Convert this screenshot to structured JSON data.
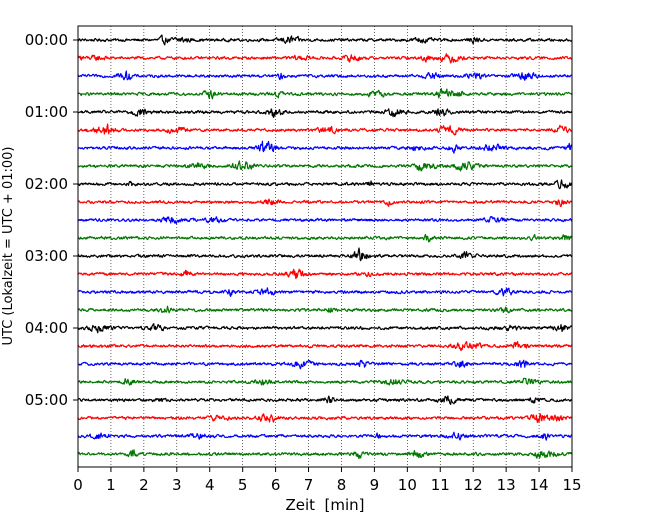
{
  "chart_data": {
    "type": "line",
    "xlabel": "Zeit  [min]",
    "ylabel": "UTC (Lokalzeit = UTC + 01:00)",
    "xlim": [
      0,
      15
    ],
    "x_ticks": [
      "0",
      "1",
      "2",
      "3",
      "4",
      "5",
      "6",
      "7",
      "8",
      "9",
      "10",
      "11",
      "12",
      "13",
      "14",
      "15"
    ],
    "y_tick_labels": [
      "00:00",
      "01:00",
      "02:00",
      "03:00",
      "04:00",
      "05:00"
    ],
    "x_grid": "dotted vertical lines at every minute",
    "series_colors": [
      "#000000",
      "#ff0000",
      "#0000ff",
      "#007700"
    ],
    "traces": [
      {
        "start": "00:00",
        "color": "#000000"
      },
      {
        "start": "00:15",
        "color": "#ff0000"
      },
      {
        "start": "00:30",
        "color": "#0000ff"
      },
      {
        "start": "00:45",
        "color": "#007700"
      },
      {
        "start": "01:00",
        "color": "#000000"
      },
      {
        "start": "01:15",
        "color": "#ff0000"
      },
      {
        "start": "01:30",
        "color": "#0000ff"
      },
      {
        "start": "01:45",
        "color": "#007700"
      },
      {
        "start": "02:00",
        "color": "#000000"
      },
      {
        "start": "02:15",
        "color": "#ff0000"
      },
      {
        "start": "02:30",
        "color": "#0000ff"
      },
      {
        "start": "02:45",
        "color": "#007700"
      },
      {
        "start": "03:00",
        "color": "#000000"
      },
      {
        "start": "03:15",
        "color": "#ff0000"
      },
      {
        "start": "03:30",
        "color": "#0000ff"
      },
      {
        "start": "03:45",
        "color": "#007700"
      },
      {
        "start": "04:00",
        "color": "#000000"
      },
      {
        "start": "04:15",
        "color": "#ff0000"
      },
      {
        "start": "04:30",
        "color": "#0000ff"
      },
      {
        "start": "04:45",
        "color": "#007700"
      },
      {
        "start": "05:00",
        "color": "#000000"
      },
      {
        "start": "05:15",
        "color": "#ff0000"
      },
      {
        "start": "05:30",
        "color": "#0000ff"
      },
      {
        "start": "05:45",
        "color": "#007700"
      }
    ]
  }
}
